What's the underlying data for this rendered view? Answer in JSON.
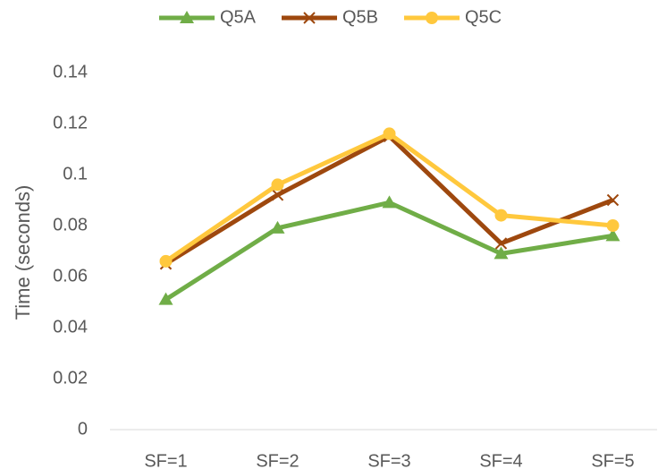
{
  "chart_data": {
    "type": "line",
    "y_label": "Time (seconds)",
    "categories": [
      "SF=1",
      "SF=2",
      "SF=3",
      "SF=4",
      "SF=5"
    ],
    "series": [
      {
        "name": "Q5A",
        "color": "#70ad47",
        "marker": "triangle",
        "values": [
          0.051,
          0.079,
          0.089,
          0.069,
          0.076
        ]
      },
      {
        "name": "Q5B",
        "color": "#9e480e",
        "marker": "x",
        "values": [
          0.065,
          0.092,
          0.115,
          0.073,
          0.09
        ]
      },
      {
        "name": "Q5C",
        "color": "#ffc83d",
        "marker": "circle",
        "values": [
          0.066,
          0.096,
          0.116,
          0.084,
          0.08
        ]
      }
    ],
    "ylim": [
      0,
      0.14
    ],
    "yticks": [
      0,
      0.02,
      0.04,
      0.06,
      0.08,
      0.1,
      0.12,
      0.14
    ],
    "grid": false,
    "legend": "top"
  }
}
